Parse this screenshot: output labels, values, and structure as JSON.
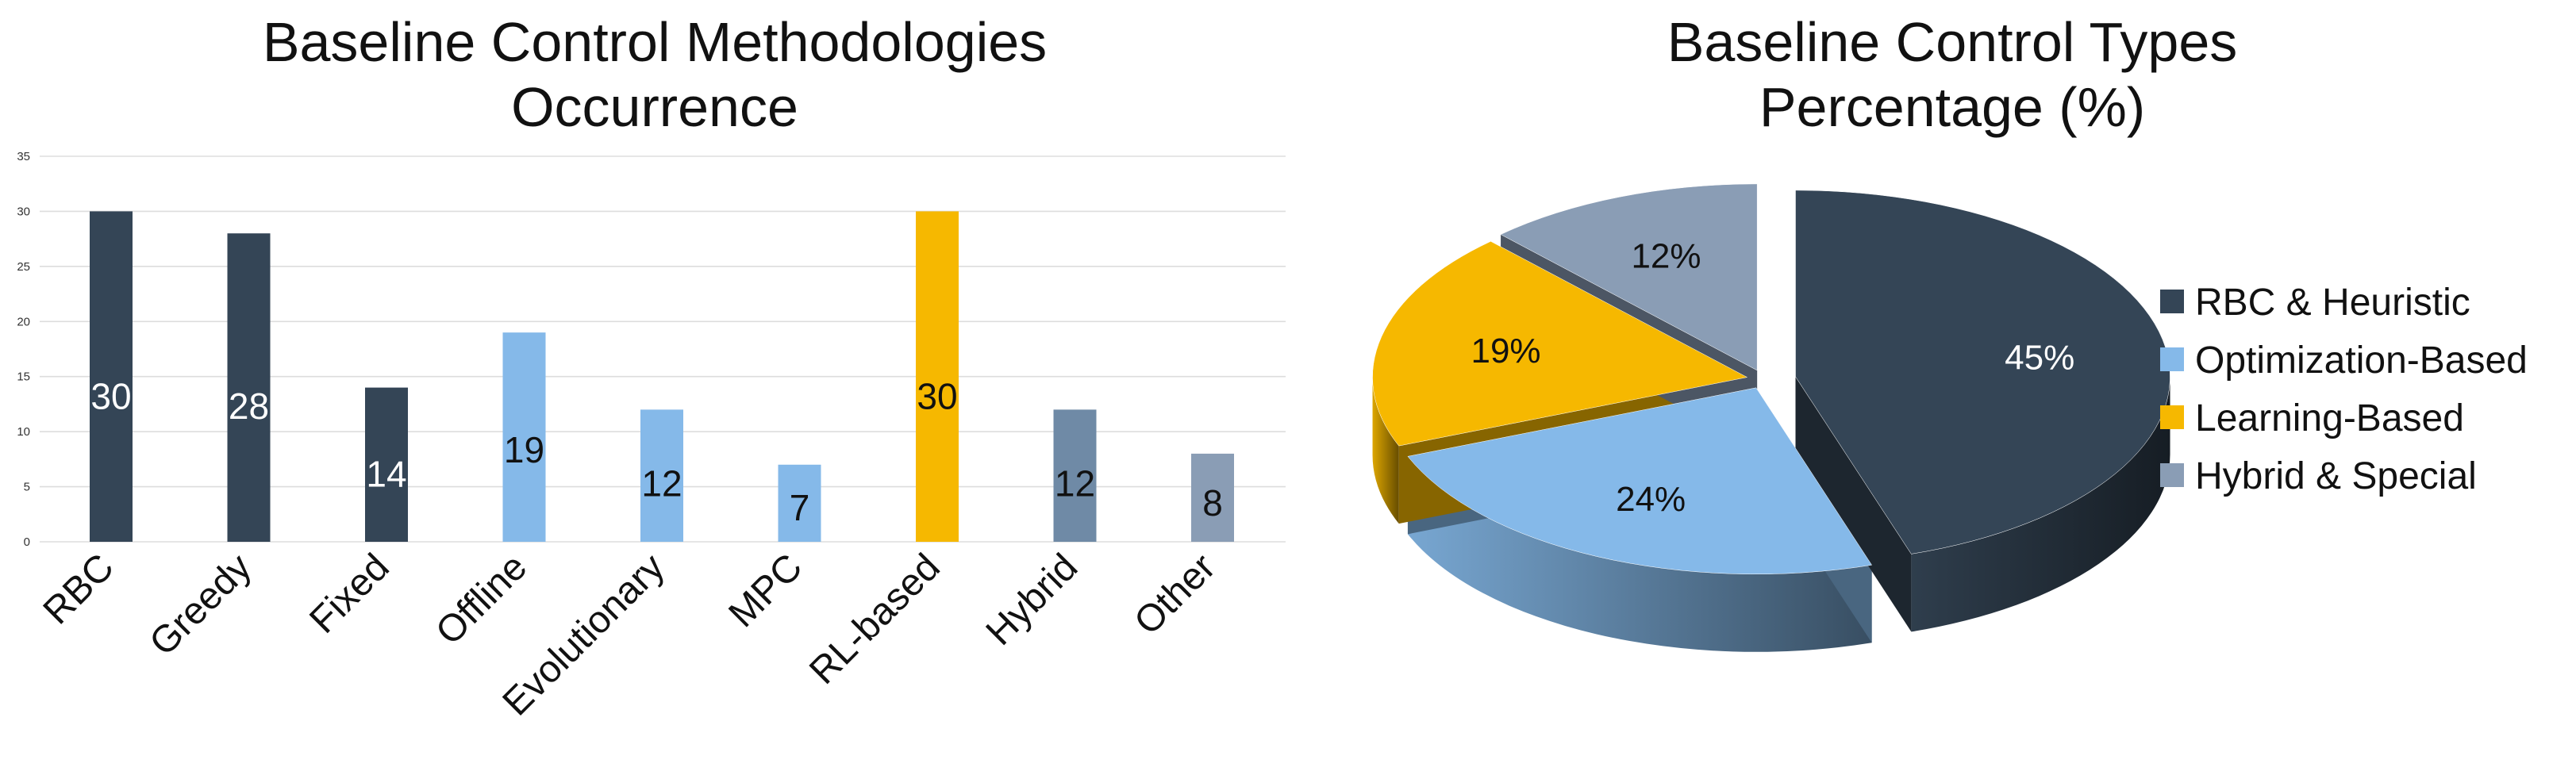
{
  "colors": {
    "dark": "#344556",
    "light_blue": "#85b9e9",
    "gold": "#f6b800",
    "slate": "#6f8aa6",
    "gray_blue": "#8a9db5",
    "grid": "#dddddd",
    "text": "#111111"
  },
  "chart_data": [
    {
      "type": "bar",
      "title_lines": [
        "Baseline Control Methodologies",
        "Occurrence"
      ],
      "categories": [
        "RBC",
        "Greedy",
        "Fixed",
        "Offline",
        "Evolutionary",
        "MPC",
        "RL-based",
        "Hybrid",
        "Other"
      ],
      "values": [
        30,
        28,
        14,
        19,
        12,
        7,
        30,
        12,
        8
      ],
      "bar_colors": [
        "#344556",
        "#344556",
        "#344556",
        "#85b9e9",
        "#85b9e9",
        "#85b9e9",
        "#f6b800",
        "#6f8aa6",
        "#8a9db5"
      ],
      "label_colors": [
        "#ffffff",
        "#ffffff",
        "#ffffff",
        "#111111",
        "#111111",
        "#111111",
        "#111111",
        "#111111",
        "#111111"
      ],
      "y_ticks": [
        0,
        5,
        10,
        15,
        20,
        25,
        30,
        35
      ],
      "ylim": [
        0,
        35
      ],
      "grid": true,
      "legend": "none"
    },
    {
      "type": "pie",
      "title_lines": [
        "Baseline Control Types",
        "Percentage (%)"
      ],
      "slices": [
        {
          "label": "RBC & Heuristic",
          "value": 45,
          "text": "45%",
          "color": "#344556",
          "label_color": "#ffffff"
        },
        {
          "label": "Optimization-Based",
          "value": 24,
          "text": "24%",
          "color": "#85b9e9",
          "label_color": "#111111"
        },
        {
          "label": "Learning-Based",
          "value": 19,
          "text": "19%",
          "color": "#f6b800",
          "label_color": "#111111"
        },
        {
          "label": "Hybrid & Special",
          "value": 12,
          "text": "12%",
          "color": "#8a9db5",
          "label_color": "#111111"
        }
      ],
      "style": "3d-exploded",
      "legend": "right"
    }
  ]
}
